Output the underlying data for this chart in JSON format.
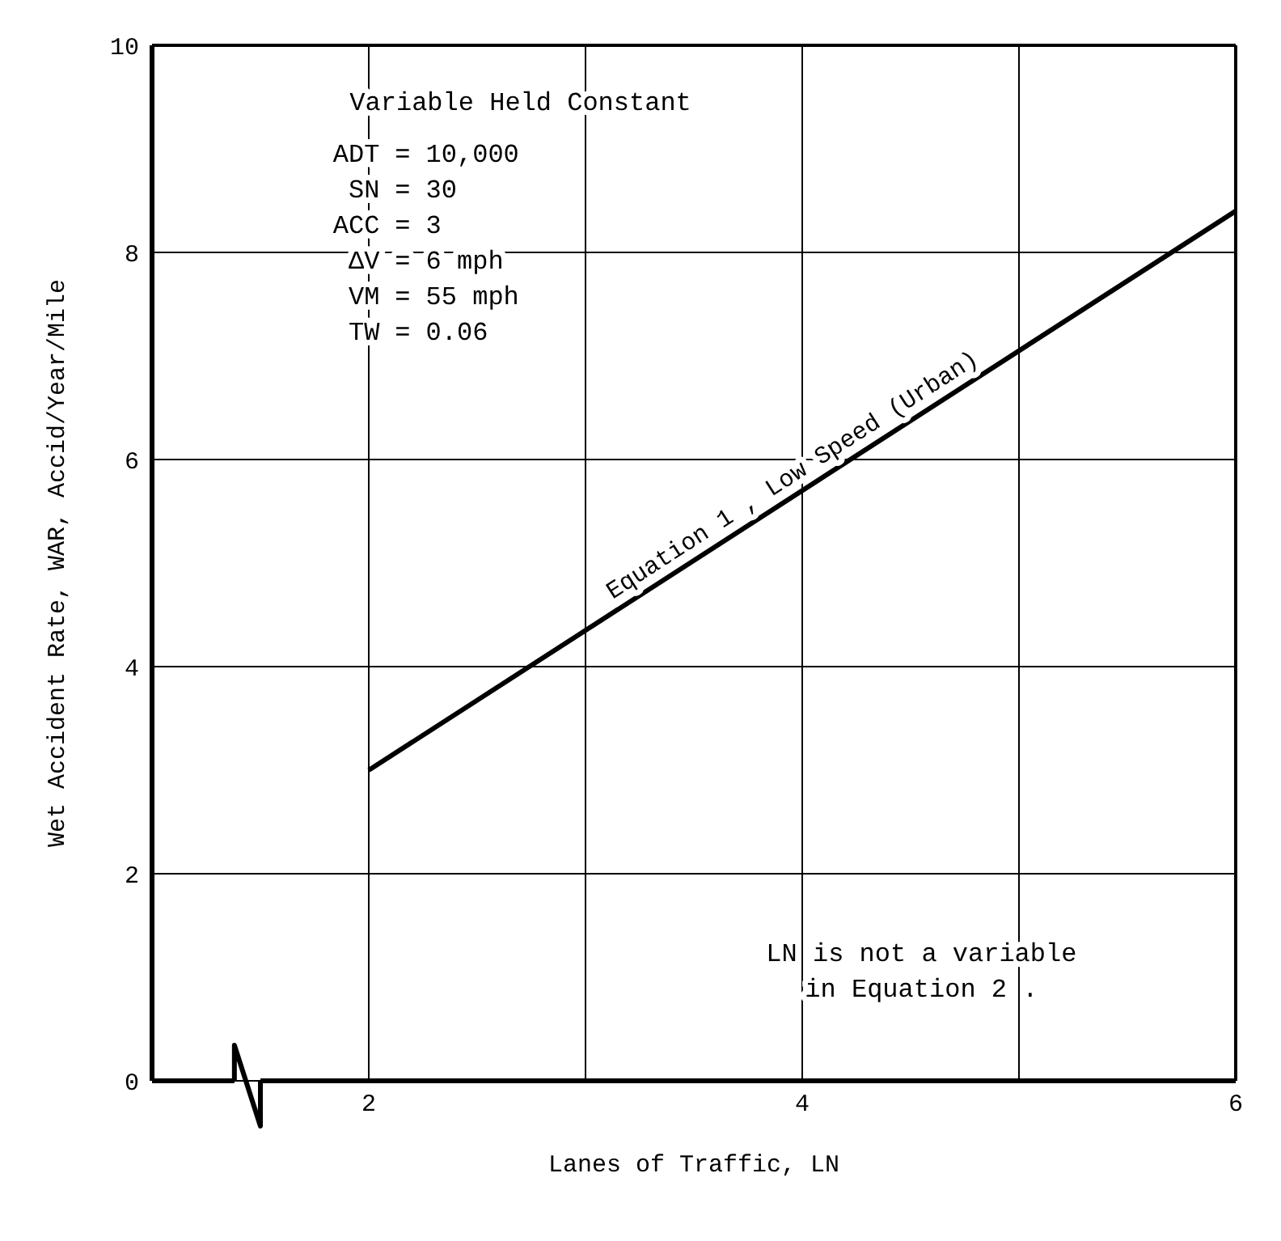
{
  "chart_data": {
    "type": "line",
    "xlabel": "Lanes of Traffic, LN",
    "ylabel": "Wet Accident Rate, WAR, Accid/Year/Mile",
    "x": [
      2,
      6
    ],
    "series": [
      {
        "name": "Equation 1 , Low Speed (Urban)",
        "color": "#000000",
        "values": [
          3.0,
          8.4
        ]
      }
    ],
    "xlim": [
      1,
      6
    ],
    "xticks": [
      {
        "value": 2,
        "label": "2"
      },
      {
        "value": 3,
        "label": null
      },
      {
        "value": 4,
        "label": "4"
      },
      {
        "value": 5,
        "label": null
      },
      {
        "value": 6,
        "label": "6"
      }
    ],
    "ylim": [
      0,
      10
    ],
    "yticks": [
      0,
      2,
      4,
      6,
      8,
      10
    ],
    "grid": true,
    "marker": "none",
    "line_style": "solid",
    "legend": false,
    "annotations": [
      "Variable Held Constant",
      "ADT = 10,000",
      "SN = 30",
      "ACC = 3",
      "ΔV = 6 mph",
      "VM = 55 mph",
      "TW = 0.06",
      "LN is not a variable\nin Equation 2 ."
    ]
  }
}
